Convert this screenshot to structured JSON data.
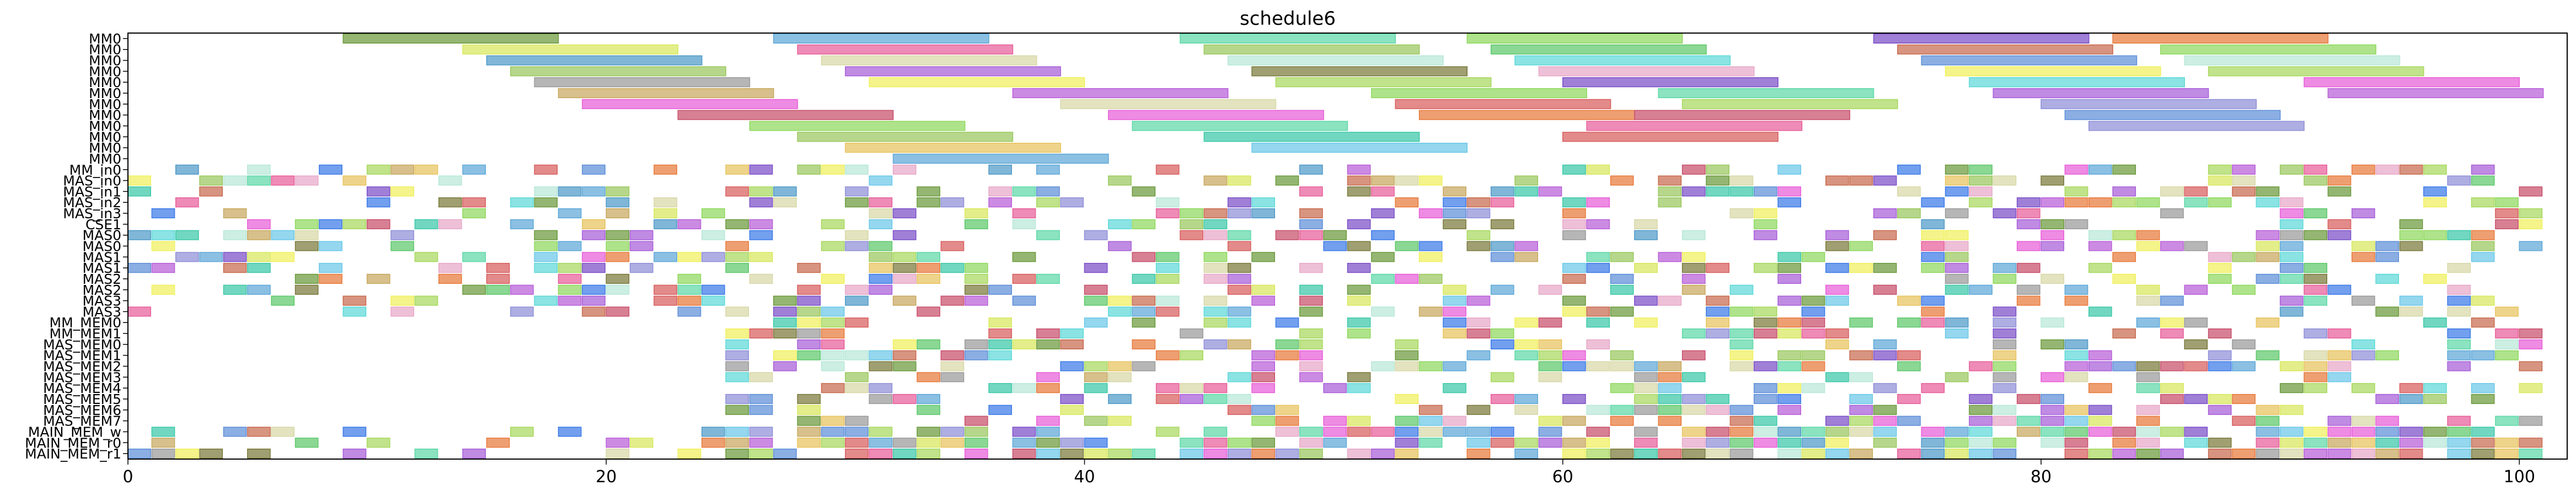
{
  "chart_data": {
    "type": "gantt",
    "title": "schedule6",
    "xlabel": "",
    "ylabel": "",
    "xlim": [
      0,
      102
    ],
    "x_ticks": [
      0,
      20,
      40,
      60,
      80,
      100
    ],
    "grid": false,
    "legend": "none",
    "rows": [
      "MM0",
      "MM0",
      "MM0",
      "MM0",
      "MM0",
      "MM0",
      "MM0",
      "MM0",
      "MM0",
      "MM0",
      "MM0",
      "MM0",
      "MM_in0",
      "MAS_in0",
      "MAS_in1",
      "MAS_in2",
      "MAS_in3",
      "CSE1",
      "MAS0",
      "MAS0",
      "MAS1",
      "MAS1",
      "MAS2",
      "MAS2",
      "MAS3",
      "MAS3",
      "MM_MEM0",
      "MM_MEM1",
      "MAS_MEM0",
      "MAS_MEM1",
      "MAS_MEM2",
      "MAS_MEM3",
      "MAS_MEM4",
      "MAS_MEM5",
      "MAS_MEM6",
      "MAS_MEM7",
      "MAIN_MEM_w",
      "MAIN_MEM_r0",
      "MAIN_MEM_r1"
    ],
    "palette": [
      "#6b9a3c",
      "#5ea8d8",
      "#5ed8a8",
      "#8fd85e",
      "#7b4fc8",
      "#e87a3c",
      "#d8e85e",
      "#4f9ac8",
      "#b85ed8",
      "#e85e9a",
      "#3cc8a8",
      "#9ac85e",
      "#c86b4f",
      "#5e8fd8",
      "#d85e5e",
      "#a8d85e",
      "#5ed8d8",
      "#e8c35e",
      "#8f8fd8",
      "#e8a8c8",
      "#7a7a3c",
      "#c8a85e",
      "#5ec86b",
      "#d8d8a8",
      "#a85ed8",
      "#3c7ae8",
      "#e85ed8",
      "#9a9a9a",
      "#b8e8d8",
      "#f0f05e",
      "#c84f6b",
      "#6bc8e8"
    ],
    "bars": [
      {
        "row": 0,
        "start": 9,
        "end": 18,
        "c": 0
      },
      {
        "row": 0,
        "start": 27,
        "end": 36,
        "c": 1
      },
      {
        "row": 0,
        "start": 44,
        "end": 53,
        "c": 2
      },
      {
        "row": 0,
        "start": 56,
        "end": 65,
        "c": 3
      },
      {
        "row": 0,
        "start": 73,
        "end": 82,
        "c": 4
      },
      {
        "row": 0,
        "start": 83,
        "end": 92,
        "c": 5
      },
      {
        "row": 1,
        "start": 14,
        "end": 23,
        "c": 6
      },
      {
        "row": 1,
        "start": 28,
        "end": 37,
        "c": 9
      },
      {
        "row": 1,
        "start": 45,
        "end": 54,
        "c": 11
      },
      {
        "row": 1,
        "start": 57,
        "end": 66,
        "c": 22
      },
      {
        "row": 1,
        "start": 74,
        "end": 83,
        "c": 12
      },
      {
        "row": 1,
        "start": 85,
        "end": 94,
        "c": 3
      },
      {
        "row": 2,
        "start": 15,
        "end": 24,
        "c": 7
      },
      {
        "row": 2,
        "start": 29,
        "end": 38,
        "c": 23
      },
      {
        "row": 2,
        "start": 46,
        "end": 55,
        "c": 28
      },
      {
        "row": 2,
        "start": 58,
        "end": 67,
        "c": 16
      },
      {
        "row": 2,
        "start": 75,
        "end": 84,
        "c": 13
      },
      {
        "row": 2,
        "start": 86,
        "end": 95,
        "c": 28
      },
      {
        "row": 3,
        "start": 16,
        "end": 25,
        "c": 11
      },
      {
        "row": 3,
        "start": 30,
        "end": 39,
        "c": 24
      },
      {
        "row": 3,
        "start": 47,
        "end": 56,
        "c": 20
      },
      {
        "row": 3,
        "start": 59,
        "end": 68,
        "c": 19
      },
      {
        "row": 3,
        "start": 76,
        "end": 85,
        "c": 29
      },
      {
        "row": 3,
        "start": 87,
        "end": 96,
        "c": 15
      },
      {
        "row": 4,
        "start": 17,
        "end": 26,
        "c": 27
      },
      {
        "row": 4,
        "start": 31,
        "end": 40,
        "c": 29
      },
      {
        "row": 4,
        "start": 48,
        "end": 57,
        "c": 15
      },
      {
        "row": 4,
        "start": 60,
        "end": 69,
        "c": 4
      },
      {
        "row": 4,
        "start": 77,
        "end": 86,
        "c": 16
      },
      {
        "row": 4,
        "start": 91,
        "end": 100,
        "c": 26
      },
      {
        "row": 5,
        "start": 18,
        "end": 27,
        "c": 21
      },
      {
        "row": 5,
        "start": 37,
        "end": 46,
        "c": 8
      },
      {
        "row": 5,
        "start": 52,
        "end": 61,
        "c": 3
      },
      {
        "row": 5,
        "start": 64,
        "end": 73,
        "c": 2
      },
      {
        "row": 5,
        "start": 78,
        "end": 87,
        "c": 24
      },
      {
        "row": 5,
        "start": 92,
        "end": 101,
        "c": 8
      },
      {
        "row": 6,
        "start": 19,
        "end": 28,
        "c": 26
      },
      {
        "row": 6,
        "start": 39,
        "end": 48,
        "c": 23
      },
      {
        "row": 6,
        "start": 53,
        "end": 62,
        "c": 14
      },
      {
        "row": 6,
        "start": 65,
        "end": 74,
        "c": 15
      },
      {
        "row": 6,
        "start": 80,
        "end": 89,
        "c": 18
      },
      {
        "row": 7,
        "start": 23,
        "end": 32,
        "c": 30
      },
      {
        "row": 7,
        "start": 41,
        "end": 50,
        "c": 26
      },
      {
        "row": 7,
        "start": 54,
        "end": 63,
        "c": 5
      },
      {
        "row": 7,
        "start": 63,
        "end": 72,
        "c": 30
      },
      {
        "row": 7,
        "start": 81,
        "end": 90,
        "c": 13
      },
      {
        "row": 8,
        "start": 26,
        "end": 35,
        "c": 3
      },
      {
        "row": 8,
        "start": 42,
        "end": 51,
        "c": 2
      },
      {
        "row": 8,
        "start": 61,
        "end": 70,
        "c": 9
      },
      {
        "row": 8,
        "start": 82,
        "end": 91,
        "c": 18
      },
      {
        "row": 9,
        "start": 28,
        "end": 37,
        "c": 11
      },
      {
        "row": 9,
        "start": 45,
        "end": 54,
        "c": 10
      },
      {
        "row": 9,
        "start": 60,
        "end": 69,
        "c": 14
      },
      {
        "row": 10,
        "start": 30,
        "end": 39,
        "c": 17
      },
      {
        "row": 10,
        "start": 47,
        "end": 56,
        "c": 31
      },
      {
        "row": 11,
        "start": 32,
        "end": 41,
        "c": 1
      }
    ],
    "small_bar_rows": [
      12,
      13,
      14,
      15,
      16,
      17,
      18,
      19,
      20,
      21,
      22,
      23,
      24,
      25,
      26,
      27,
      28,
      29,
      30,
      31,
      32,
      33,
      34,
      35,
      36,
      37,
      38
    ],
    "small_bar_width": 1
  }
}
